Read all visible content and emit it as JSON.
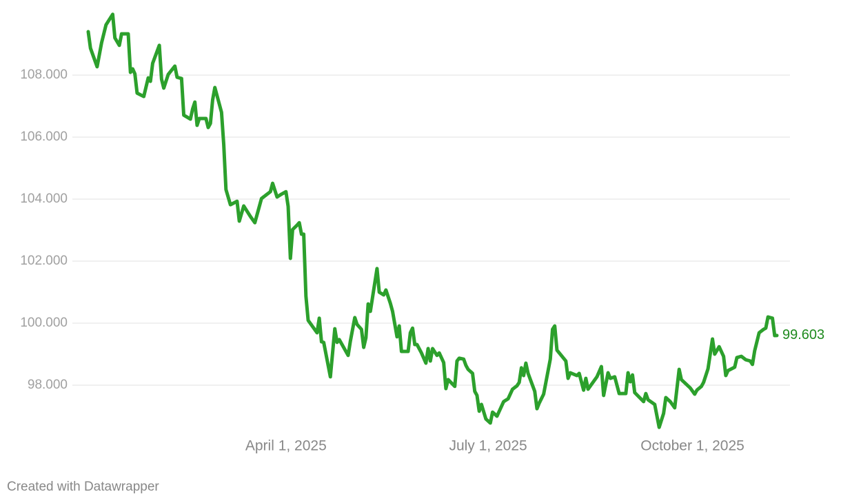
{
  "chart_data": {
    "type": "line",
    "color": "#2ca02c",
    "grid": true,
    "footer": "Created with Datawrapper",
    "xlim": [
      "2025-01-02",
      "2025-11-08"
    ],
    "xticks": [
      {
        "value": "2025-04-01",
        "label": "April 1, 2025"
      },
      {
        "value": "2025-07-01",
        "label": "July 1, 2025"
      },
      {
        "value": "2025-10-01",
        "label": "October 1, 2025"
      }
    ],
    "ylim": [
      96.3,
      110.2
    ],
    "yticks": [
      {
        "value": 98,
        "label": "98.000"
      },
      {
        "value": 100,
        "label": "100.000"
      },
      {
        "value": 102,
        "label": "102.000"
      },
      {
        "value": 104,
        "label": "104.000"
      },
      {
        "value": 106,
        "label": "106.000"
      },
      {
        "value": 108,
        "label": "108.000"
      }
    ],
    "x": [
      "2025-01-02",
      "2025-01-03",
      "2025-01-06",
      "2025-01-08",
      "2025-01-10",
      "2025-01-13",
      "2025-01-14",
      "2025-01-16",
      "2025-01-17",
      "2025-01-20",
      "2025-01-21",
      "2025-01-22",
      "2025-01-23",
      "2025-01-24",
      "2025-01-27",
      "2025-01-29",
      "2025-01-30",
      "2025-01-31",
      "2025-02-03",
      "2025-02-04",
      "2025-02-05",
      "2025-02-07",
      "2025-02-10",
      "2025-02-11",
      "2025-02-13",
      "2025-02-14",
      "2025-02-17",
      "2025-02-18",
      "2025-02-19",
      "2025-02-20",
      "2025-02-21",
      "2025-02-24",
      "2025-02-25",
      "2025-02-26",
      "2025-02-27",
      "2025-02-28",
      "2025-03-03",
      "2025-03-04",
      "2025-03-05",
      "2025-03-07",
      "2025-03-10",
      "2025-03-11",
      "2025-03-13",
      "2025-03-16",
      "2025-03-18",
      "2025-03-20",
      "2025-03-21",
      "2025-03-23",
      "2025-03-25",
      "2025-03-26",
      "2025-03-28",
      "2025-03-30",
      "2025-04-01",
      "2025-04-02",
      "2025-04-03",
      "2025-04-04",
      "2025-04-06",
      "2025-04-07",
      "2025-04-08",
      "2025-04-09",
      "2025-04-10",
      "2025-04-11",
      "2025-04-15",
      "2025-04-16",
      "2025-04-17",
      "2025-04-18",
      "2025-04-21",
      "2025-04-23",
      "2025-04-24",
      "2025-04-25",
      "2025-04-29",
      "2025-04-30",
      "2025-05-02",
      "2025-05-03",
      "2025-05-05",
      "2025-05-06",
      "2025-05-07",
      "2025-05-08",
      "2025-05-09",
      "2025-05-12",
      "2025-05-13",
      "2025-05-15",
      "2025-05-16",
      "2025-05-18",
      "2025-05-19",
      "2025-05-21",
      "2025-05-22",
      "2025-05-23",
      "2025-05-26",
      "2025-05-27",
      "2025-05-28",
      "2025-05-29",
      "2025-05-30",
      "2025-06-01",
      "2025-06-03",
      "2025-06-04",
      "2025-06-05",
      "2025-06-06",
      "2025-06-08",
      "2025-06-09",
      "2025-06-11",
      "2025-06-12",
      "2025-06-13",
      "2025-06-16",
      "2025-06-17",
      "2025-06-18",
      "2025-06-20",
      "2025-06-21",
      "2025-06-22",
      "2025-06-24",
      "2025-06-25",
      "2025-06-26",
      "2025-06-27",
      "2025-06-28",
      "2025-06-30",
      "2025-07-02",
      "2025-07-03",
      "2025-07-05",
      "2025-07-08",
      "2025-07-10",
      "2025-07-12",
      "2025-07-14",
      "2025-07-15",
      "2025-07-16",
      "2025-07-17",
      "2025-07-18",
      "2025-07-19",
      "2025-07-22",
      "2025-07-23",
      "2025-07-24",
      "2025-07-26",
      "2025-07-29",
      "2025-07-30",
      "2025-07-31",
      "2025-08-01",
      "2025-08-05",
      "2025-08-06",
      "2025-08-07",
      "2025-08-10",
      "2025-08-11",
      "2025-08-13",
      "2025-08-14",
      "2025-08-15",
      "2025-08-19",
      "2025-08-21",
      "2025-08-22",
      "2025-08-24",
      "2025-08-25",
      "2025-08-27",
      "2025-08-29",
      "2025-09-01",
      "2025-09-02",
      "2025-09-03",
      "2025-09-04",
      "2025-09-05",
      "2025-09-09",
      "2025-09-10",
      "2025-09-11",
      "2025-09-14",
      "2025-09-16",
      "2025-09-18",
      "2025-09-19",
      "2025-09-21",
      "2025-09-23",
      "2025-09-25",
      "2025-09-26",
      "2025-09-30",
      "2025-10-02",
      "2025-10-03",
      "2025-10-05",
      "2025-10-06",
      "2025-10-08",
      "2025-10-10",
      "2025-10-11",
      "2025-10-13",
      "2025-10-15",
      "2025-10-16",
      "2025-10-17",
      "2025-10-20",
      "2025-10-21",
      "2025-10-23",
      "2025-10-25",
      "2025-10-27",
      "2025-10-28",
      "2025-10-29",
      "2025-10-31",
      "2025-11-02",
      "2025-11-03",
      "2025-11-04",
      "2025-11-06",
      "2025-11-07",
      "2025-11-08"
    ],
    "values": [
      109.4,
      108.87,
      108.27,
      109.04,
      109.62,
      109.96,
      109.2,
      108.96,
      109.33,
      109.33,
      108.09,
      108.2,
      108.04,
      107.42,
      107.31,
      107.91,
      107.8,
      108.38,
      108.96,
      107.87,
      107.58,
      108.02,
      108.29,
      107.93,
      107.89,
      106.71,
      106.58,
      106.91,
      107.13,
      106.38,
      106.6,
      106.6,
      106.31,
      106.44,
      107.2,
      107.6,
      106.8,
      105.76,
      104.31,
      103.82,
      103.93,
      103.29,
      103.78,
      103.44,
      103.24,
      103.76,
      104.02,
      104.13,
      104.24,
      104.51,
      104.07,
      104.16,
      104.24,
      103.76,
      102.09,
      103.02,
      103.16,
      103.24,
      102.87,
      102.87,
      100.87,
      100.09,
      99.69,
      100.16,
      99.4,
      99.38,
      98.27,
      99.82,
      99.38,
      99.47,
      98.96,
      99.42,
      100.18,
      99.96,
      99.8,
      99.22,
      99.53,
      100.62,
      100.38,
      101.76,
      101.0,
      100.91,
      101.07,
      100.64,
      100.38,
      99.56,
      99.91,
      99.09,
      99.09,
      99.69,
      99.84,
      99.31,
      99.31,
      99.04,
      98.71,
      99.18,
      98.78,
      99.18,
      98.96,
      99.04,
      98.73,
      97.89,
      98.18,
      97.96,
      98.78,
      98.87,
      98.84,
      98.64,
      98.51,
      98.38,
      97.8,
      97.67,
      97.16,
      97.38,
      96.91,
      96.78,
      97.13,
      97.0,
      97.47,
      97.56,
      97.87,
      97.98,
      98.09,
      98.56,
      98.31,
      98.71,
      98.38,
      97.8,
      97.24,
      97.42,
      97.71,
      98.84,
      99.8,
      99.91,
      99.13,
      98.78,
      98.22,
      98.4,
      98.31,
      98.38,
      97.84,
      98.22,
      97.87,
      98.27,
      98.6,
      97.67,
      98.4,
      98.22,
      98.27,
      97.73,
      97.73,
      98.4,
      98.11,
      98.33,
      97.76,
      97.47,
      97.73,
      97.53,
      97.38,
      96.64,
      97.09,
      97.6,
      97.47,
      97.27,
      98.51,
      98.18,
      97.91,
      97.71,
      97.84,
      97.96,
      98.09,
      98.53,
      99.49,
      99.0,
      99.24,
      98.93,
      98.31,
      98.47,
      98.58,
      98.89,
      98.93,
      98.82,
      98.78,
      98.67,
      99.11,
      99.69,
      99.8,
      99.84,
      100.2,
      100.16,
      99.6,
      99.603
    ]
  }
}
